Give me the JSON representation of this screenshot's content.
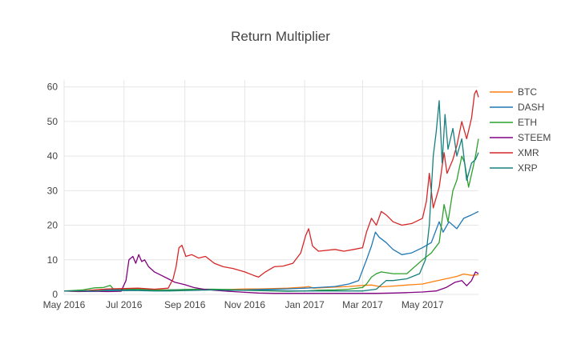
{
  "chart_data": {
    "type": "line",
    "title": "Return Multiplier",
    "xlabel": "",
    "ylabel": "",
    "grid": true,
    "legend_placement": "right",
    "x_range": [
      "2016-05-01",
      "2017-06-27"
    ],
    "ylim": [
      0,
      62
    ],
    "y_ticks": [
      0,
      10,
      20,
      30,
      40,
      50,
      60
    ],
    "x_ticks": [
      {
        "date": "2016-05-01",
        "label": "May 2016"
      },
      {
        "date": "2016-07-01",
        "label": "Jul 2016"
      },
      {
        "date": "2016-09-01",
        "label": "Sep 2016"
      },
      {
        "date": "2016-11-01",
        "label": "Nov 2016"
      },
      {
        "date": "2017-01-01",
        "label": "Jan 2017"
      },
      {
        "date": "2017-03-01",
        "label": "Mar 2017"
      },
      {
        "date": "2017-05-01",
        "label": "May 2017"
      }
    ],
    "series": [
      {
        "name": "BTC",
        "color": "#ff7f0e",
        "points": [
          [
            "2016-05-01",
            1.0
          ],
          [
            "2016-05-15",
            1.0
          ],
          [
            "2016-06-01",
            1.2
          ],
          [
            "2016-06-15",
            1.6
          ],
          [
            "2016-07-01",
            1.5
          ],
          [
            "2016-07-15",
            1.5
          ],
          [
            "2016-08-01",
            1.3
          ],
          [
            "2016-08-15",
            1.3
          ],
          [
            "2016-09-01",
            1.3
          ],
          [
            "2016-09-15",
            1.3
          ],
          [
            "2016-10-01",
            1.3
          ],
          [
            "2016-10-15",
            1.4
          ],
          [
            "2016-11-01",
            1.6
          ],
          [
            "2016-11-15",
            1.6
          ],
          [
            "2016-12-01",
            1.7
          ],
          [
            "2016-12-15",
            1.8
          ],
          [
            "2017-01-01",
            2.1
          ],
          [
            "2017-01-05",
            2.3
          ],
          [
            "2017-01-10",
            1.8
          ],
          [
            "2017-01-20",
            1.95
          ],
          [
            "2017-02-01",
            2.1
          ],
          [
            "2017-02-15",
            2.3
          ],
          [
            "2017-03-01",
            2.6
          ],
          [
            "2017-03-10",
            2.7
          ],
          [
            "2017-03-20",
            2.2
          ],
          [
            "2017-04-01",
            2.4
          ],
          [
            "2017-04-15",
            2.7
          ],
          [
            "2017-05-01",
            3.0
          ],
          [
            "2017-05-15",
            3.9
          ],
          [
            "2017-05-25",
            4.5
          ],
          [
            "2017-06-05",
            5.2
          ],
          [
            "2017-06-12",
            5.9
          ],
          [
            "2017-06-20",
            5.5
          ],
          [
            "2017-06-27",
            5.7
          ]
        ]
      },
      {
        "name": "DASH",
        "color": "#1f77b4",
        "points": [
          [
            "2016-05-01",
            1.0
          ],
          [
            "2016-05-15",
            0.9
          ],
          [
            "2016-06-01",
            0.9
          ],
          [
            "2016-06-15",
            1.3
          ],
          [
            "2016-07-01",
            1.4
          ],
          [
            "2016-07-15",
            1.2
          ],
          [
            "2016-08-01",
            1.2
          ],
          [
            "2016-08-15",
            1.3
          ],
          [
            "2016-09-01",
            1.4
          ],
          [
            "2016-09-15",
            1.5
          ],
          [
            "2016-10-01",
            1.4
          ],
          [
            "2016-10-15",
            1.3
          ],
          [
            "2016-11-01",
            1.3
          ],
          [
            "2016-11-15",
            1.4
          ],
          [
            "2016-12-01",
            1.5
          ],
          [
            "2016-12-15",
            1.6
          ],
          [
            "2017-01-01",
            1.8
          ],
          [
            "2017-01-15",
            2.0
          ],
          [
            "2017-02-01",
            2.3
          ],
          [
            "2017-02-15",
            3.0
          ],
          [
            "2017-02-25",
            4.0
          ],
          [
            "2017-03-01",
            7.0
          ],
          [
            "2017-03-05",
            10.0
          ],
          [
            "2017-03-10",
            14.0
          ],
          [
            "2017-03-14",
            18.0
          ],
          [
            "2017-03-18",
            16.5
          ],
          [
            "2017-03-25",
            15.0
          ],
          [
            "2017-04-01",
            13.0
          ],
          [
            "2017-04-10",
            11.5
          ],
          [
            "2017-04-20",
            12.0
          ],
          [
            "2017-05-01",
            13.5
          ],
          [
            "2017-05-10",
            15.0
          ],
          [
            "2017-05-18",
            21.0
          ],
          [
            "2017-05-22",
            18.0
          ],
          [
            "2017-05-28",
            21.0
          ],
          [
            "2017-06-05",
            19.0
          ],
          [
            "2017-06-12",
            22.0
          ],
          [
            "2017-06-20",
            23.0
          ],
          [
            "2017-06-27",
            24.0
          ]
        ]
      },
      {
        "name": "ETH",
        "color": "#2ca02c",
        "points": [
          [
            "2016-05-01",
            1.0
          ],
          [
            "2016-05-10",
            1.1
          ],
          [
            "2016-05-20",
            1.3
          ],
          [
            "2016-06-01",
            1.9
          ],
          [
            "2016-06-10",
            2.0
          ],
          [
            "2016-06-17",
            2.6
          ],
          [
            "2016-06-20",
            1.6
          ],
          [
            "2016-07-01",
            1.5
          ],
          [
            "2016-07-15",
            1.5
          ],
          [
            "2016-08-01",
            1.3
          ],
          [
            "2016-08-15",
            1.2
          ],
          [
            "2016-09-01",
            1.4
          ],
          [
            "2016-09-15",
            1.5
          ],
          [
            "2016-10-01",
            1.5
          ],
          [
            "2016-10-15",
            1.4
          ],
          [
            "2016-11-01",
            1.2
          ],
          [
            "2016-11-15",
            1.1
          ],
          [
            "2016-12-01",
            1.0
          ],
          [
            "2016-12-15",
            0.9
          ],
          [
            "2017-01-01",
            1.0
          ],
          [
            "2017-01-15",
            1.2
          ],
          [
            "2017-02-01",
            1.3
          ],
          [
            "2017-02-15",
            1.5
          ],
          [
            "2017-03-01",
            2.0
          ],
          [
            "2017-03-05",
            3.0
          ],
          [
            "2017-03-10",
            5.0
          ],
          [
            "2017-03-15",
            6.0
          ],
          [
            "2017-03-20",
            6.5
          ],
          [
            "2017-04-01",
            6.0
          ],
          [
            "2017-04-15",
            6.0
          ],
          [
            "2017-05-01",
            10.0
          ],
          [
            "2017-05-10",
            12.0
          ],
          [
            "2017-05-18",
            15.0
          ],
          [
            "2017-05-23",
            26.0
          ],
          [
            "2017-05-27",
            21.0
          ],
          [
            "2017-06-01",
            30.0
          ],
          [
            "2017-06-05",
            33.0
          ],
          [
            "2017-06-10",
            40.0
          ],
          [
            "2017-06-13",
            38.0
          ],
          [
            "2017-06-17",
            31.0
          ],
          [
            "2017-06-21",
            36.0
          ],
          [
            "2017-06-24",
            40.0
          ],
          [
            "2017-06-27",
            45.0
          ]
        ]
      },
      {
        "name": "STEEM",
        "color": "#800080",
        "points": [
          [
            "2016-05-01",
            1.0
          ],
          [
            "2016-05-15",
            0.8
          ],
          [
            "2016-06-01",
            0.9
          ],
          [
            "2016-06-15",
            0.8
          ],
          [
            "2016-06-28",
            0.9
          ],
          [
            "2016-07-03",
            4.0
          ],
          [
            "2016-07-06",
            10.0
          ],
          [
            "2016-07-10",
            11.0
          ],
          [
            "2016-07-13",
            9.0
          ],
          [
            "2016-07-16",
            11.5
          ],
          [
            "2016-07-19",
            9.5
          ],
          [
            "2016-07-22",
            10.0
          ],
          [
            "2016-07-26",
            8.0
          ],
          [
            "2016-08-01",
            6.5
          ],
          [
            "2016-08-08",
            5.5
          ],
          [
            "2016-08-15",
            4.5
          ],
          [
            "2016-08-22",
            3.5
          ],
          [
            "2016-09-01",
            2.8
          ],
          [
            "2016-09-10",
            2.0
          ],
          [
            "2016-09-20",
            1.5
          ],
          [
            "2016-10-01",
            1.2
          ],
          [
            "2016-10-15",
            0.9
          ],
          [
            "2016-11-01",
            0.6
          ],
          [
            "2016-11-15",
            0.4
          ],
          [
            "2016-12-01",
            0.3
          ],
          [
            "2016-12-15",
            0.3
          ],
          [
            "2017-01-01",
            0.3
          ],
          [
            "2017-01-15",
            0.3
          ],
          [
            "2017-02-01",
            0.3
          ],
          [
            "2017-02-15",
            0.3
          ],
          [
            "2017-03-01",
            0.3
          ],
          [
            "2017-03-15",
            0.3
          ],
          [
            "2017-04-01",
            0.4
          ],
          [
            "2017-04-15",
            0.5
          ],
          [
            "2017-05-01",
            0.7
          ],
          [
            "2017-05-15",
            1.0
          ],
          [
            "2017-05-25",
            2.0
          ],
          [
            "2017-06-03",
            3.5
          ],
          [
            "2017-06-10",
            4.0
          ],
          [
            "2017-06-15",
            2.5
          ],
          [
            "2017-06-20",
            4.0
          ],
          [
            "2017-06-24",
            6.5
          ],
          [
            "2017-06-27",
            6.0
          ]
        ]
      },
      {
        "name": "XMR",
        "color": "#d62728",
        "points": [
          [
            "2016-05-01",
            1.0
          ],
          [
            "2016-05-15",
            0.9
          ],
          [
            "2016-06-01",
            1.3
          ],
          [
            "2016-06-15",
            1.6
          ],
          [
            "2016-07-01",
            1.7
          ],
          [
            "2016-07-15",
            1.8
          ],
          [
            "2016-08-01",
            1.5
          ],
          [
            "2016-08-15",
            1.8
          ],
          [
            "2016-08-20",
            4.5
          ],
          [
            "2016-08-23",
            8.0
          ],
          [
            "2016-08-26",
            13.5
          ],
          [
            "2016-08-29",
            14.2
          ],
          [
            "2016-09-02",
            11.0
          ],
          [
            "2016-09-08",
            11.5
          ],
          [
            "2016-09-15",
            10.5
          ],
          [
            "2016-09-22",
            11.0
          ],
          [
            "2016-10-01",
            9.0
          ],
          [
            "2016-10-10",
            8.0
          ],
          [
            "2016-10-20",
            7.5
          ],
          [
            "2016-11-01",
            6.5
          ],
          [
            "2016-11-10",
            5.5
          ],
          [
            "2016-11-15",
            5.0
          ],
          [
            "2016-11-22",
            6.5
          ],
          [
            "2016-12-01",
            8.0
          ],
          [
            "2016-12-10",
            8.2
          ],
          [
            "2016-12-20",
            9.0
          ],
          [
            "2016-12-28",
            12.0
          ],
          [
            "2017-01-02",
            17.0
          ],
          [
            "2017-01-05",
            19.0
          ],
          [
            "2017-01-09",
            14.0
          ],
          [
            "2017-01-15",
            12.5
          ],
          [
            "2017-02-01",
            13.0
          ],
          [
            "2017-02-10",
            12.5
          ],
          [
            "2017-02-20",
            13.0
          ],
          [
            "2017-03-01",
            13.5
          ],
          [
            "2017-03-05",
            18.0
          ],
          [
            "2017-03-10",
            22.0
          ],
          [
            "2017-03-15",
            20.0
          ],
          [
            "2017-03-20",
            24.0
          ],
          [
            "2017-03-25",
            23.0
          ],
          [
            "2017-04-01",
            21.0
          ],
          [
            "2017-04-10",
            20.0
          ],
          [
            "2017-04-20",
            20.5
          ],
          [
            "2017-05-01",
            22.0
          ],
          [
            "2017-05-05",
            27.0
          ],
          [
            "2017-05-08",
            35.0
          ],
          [
            "2017-05-12",
            25.0
          ],
          [
            "2017-05-18",
            31.0
          ],
          [
            "2017-05-23",
            41.0
          ],
          [
            "2017-05-26",
            35.0
          ],
          [
            "2017-06-01",
            39.0
          ],
          [
            "2017-06-05",
            43.0
          ],
          [
            "2017-06-10",
            50.0
          ],
          [
            "2017-06-15",
            45.0
          ],
          [
            "2017-06-20",
            51.0
          ],
          [
            "2017-06-23",
            58.0
          ],
          [
            "2017-06-25",
            59.0
          ],
          [
            "2017-06-27",
            57.0
          ]
        ]
      },
      {
        "name": "XRP",
        "color": "#17807e",
        "points": [
          [
            "2016-05-01",
            1.0
          ],
          [
            "2016-05-15",
            1.0
          ],
          [
            "2016-06-01",
            1.0
          ],
          [
            "2016-06-15",
            1.1
          ],
          [
            "2016-07-01",
            1.1
          ],
          [
            "2016-07-15",
            1.1
          ],
          [
            "2016-08-01",
            1.0
          ],
          [
            "2016-08-15",
            1.0
          ],
          [
            "2016-09-01",
            1.1
          ],
          [
            "2016-09-15",
            1.2
          ],
          [
            "2016-10-01",
            1.3
          ],
          [
            "2016-10-15",
            1.2
          ],
          [
            "2016-11-01",
            1.2
          ],
          [
            "2016-11-15",
            1.2
          ],
          [
            "2016-12-01",
            1.1
          ],
          [
            "2016-12-15",
            1.0
          ],
          [
            "2017-01-01",
            1.0
          ],
          [
            "2017-01-15",
            1.0
          ],
          [
            "2017-02-01",
            1.0
          ],
          [
            "2017-02-15",
            1.0
          ],
          [
            "2017-03-01",
            1.0
          ],
          [
            "2017-03-15",
            1.5
          ],
          [
            "2017-03-25",
            4.0
          ],
          [
            "2017-04-01",
            4.0
          ],
          [
            "2017-04-15",
            4.5
          ],
          [
            "2017-04-28",
            6.0
          ],
          [
            "2017-05-04",
            10.0
          ],
          [
            "2017-05-08",
            20.0
          ],
          [
            "2017-05-12",
            40.0
          ],
          [
            "2017-05-15",
            47.0
          ],
          [
            "2017-05-18",
            56.0
          ],
          [
            "2017-05-21",
            38.0
          ],
          [
            "2017-05-24",
            52.0
          ],
          [
            "2017-05-27",
            42.0
          ],
          [
            "2017-06-01",
            48.0
          ],
          [
            "2017-06-05",
            40.0
          ],
          [
            "2017-06-10",
            45.0
          ],
          [
            "2017-06-15",
            33.0
          ],
          [
            "2017-06-20",
            38.0
          ],
          [
            "2017-06-24",
            39.0
          ],
          [
            "2017-06-27",
            41.0
          ]
        ]
      }
    ]
  }
}
